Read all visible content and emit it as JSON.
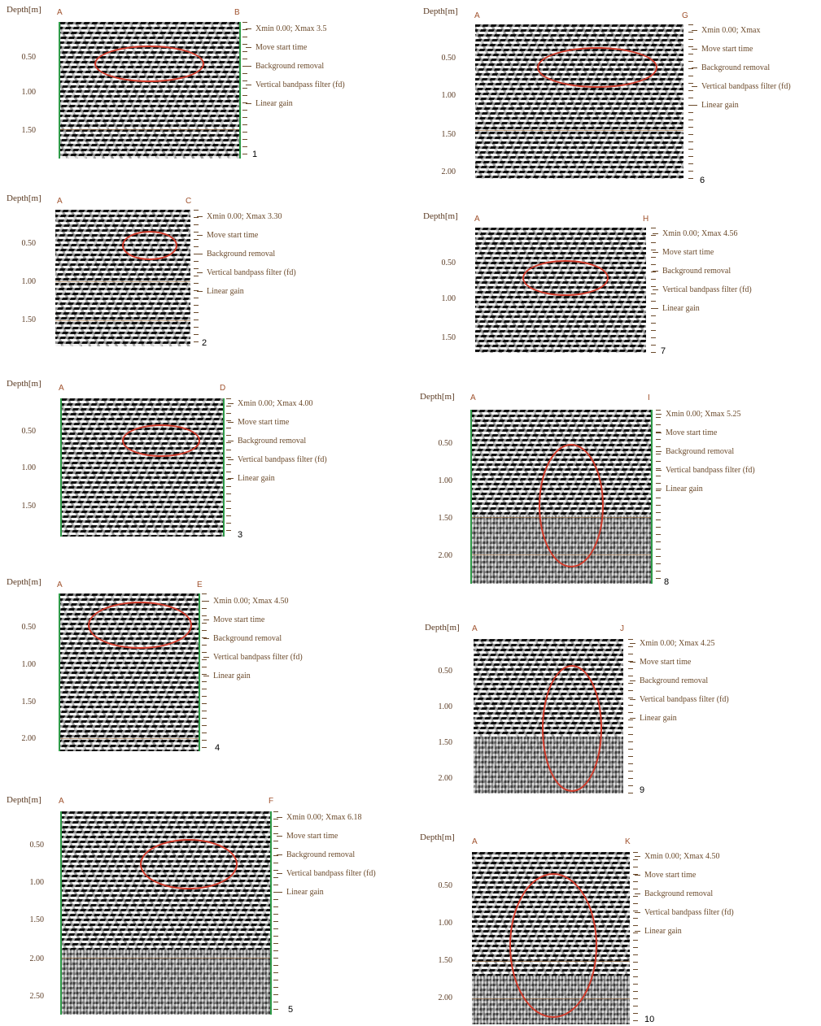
{
  "depth_label": "Depth[m]",
  "settings_lines": [
    "Xmin 0.00; Xmax",
    "Move start time",
    "Background removal",
    "Vertical bandpass filter (fd)",
    "Linear gain"
  ],
  "panels": [
    {
      "num": "1",
      "left": "A",
      "right": "B",
      "xmax": "3.5",
      "ticks": [
        "0.50",
        "1.00",
        "1.50"
      ]
    },
    {
      "num": "2",
      "left": "A",
      "right": "C",
      "xmax": "3.30",
      "ticks": [
        "0.50",
        "1.00",
        "1.50"
      ]
    },
    {
      "num": "3",
      "left": "A",
      "right": "D",
      "xmax": "4.00",
      "ticks": [
        "0.50",
        "1.00",
        "1.50"
      ]
    },
    {
      "num": "4",
      "left": "A",
      "right": "E",
      "xmax": "4.50",
      "ticks": [
        "0.50",
        "1.00",
        "1.50",
        "2.00"
      ]
    },
    {
      "num": "5",
      "left": "A",
      "right": "F",
      "xmax": "6.18",
      "ticks": [
        "0.50",
        "1.00",
        "1.50",
        "2.00",
        "2.50"
      ]
    },
    {
      "num": "6",
      "left": "A",
      "right": "G",
      "xmax": "",
      "ticks": [
        "0.50",
        "1.00",
        "1.50",
        "2.00"
      ]
    },
    {
      "num": "7",
      "left": "A",
      "right": "H",
      "xmax": "4.56",
      "ticks": [
        "0.50",
        "1.00",
        "1.50"
      ]
    },
    {
      "num": "8",
      "left": "A",
      "right": "I",
      "xmax": "5.25",
      "ticks": [
        "0.50",
        "1.00",
        "1.50",
        "2.00"
      ]
    },
    {
      "num": "9",
      "left": "A",
      "right": "J",
      "xmax": "4.25",
      "ticks": [
        "0.50",
        "1.00",
        "1.50",
        "2.00"
      ]
    },
    {
      "num": "10",
      "left": "A",
      "right": "K",
      "xmax": "4.50",
      "ticks": [
        "0.50",
        "1.00",
        "1.50",
        "2.00"
      ]
    }
  ]
}
